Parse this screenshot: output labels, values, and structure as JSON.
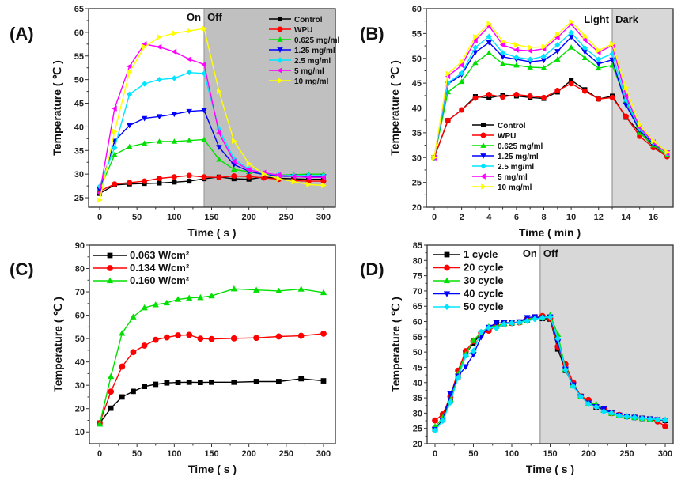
{
  "colors": {
    "Control": "#000000",
    "WPU": "#ff0000",
    "green": "#00e000",
    "blue": "#0000ff",
    "cyan": "#00e5ff",
    "magenta": "#ff00ff",
    "yellow": "#ffff00",
    "shade_A": "#c0c0c0",
    "shade_BD": "#d8d8d8"
  },
  "chart_data": [
    {
      "panel": "(A)",
      "type": "line",
      "xlabel": "Time ( s )",
      "ylabel": "Temperature ( ℃ )",
      "xlim": [
        -8,
        310
      ],
      "ylim": [
        23,
        65
      ],
      "xticks": [
        0,
        50,
        100,
        150,
        200,
        250,
        300
      ],
      "yticks": [
        25,
        30,
        35,
        40,
        45,
        50,
        55,
        60,
        65
      ],
      "shade_from": 140,
      "annotations": [
        "On",
        "Off"
      ],
      "legend_position": "top-right",
      "x": [
        0,
        20,
        40,
        60,
        80,
        100,
        120,
        140,
        160,
        180,
        200,
        220,
        240,
        260,
        280,
        300
      ],
      "series": [
        {
          "name": "Control",
          "marker": "square",
          "color": "#000000",
          "values": [
            25.9,
            27.7,
            27.9,
            28.0,
            28.1,
            28.3,
            28.5,
            29.0,
            29.4,
            29.0,
            28.9,
            29.4,
            29.1,
            29.0,
            28.9,
            28.9
          ]
        },
        {
          "name": "WPU",
          "marker": "circle",
          "color": "#ff0000",
          "values": [
            26.4,
            27.9,
            28.2,
            28.5,
            29.1,
            29.4,
            29.7,
            29.4,
            29.3,
            29.6,
            29.5,
            29.2,
            28.9,
            28.6,
            28.5,
            28.5
          ]
        },
        {
          "name": "0.625 mg/ml",
          "marker": "triangle-up",
          "color": "#00e000",
          "values": [
            26.8,
            34.1,
            35.8,
            36.5,
            36.9,
            36.9,
            37.1,
            37.3,
            33.1,
            31.0,
            30.5,
            30.0,
            29.8,
            29.9,
            30.0,
            30.0
          ]
        },
        {
          "name": "1.25  mg/ml",
          "marker": "triangle-down",
          "color": "#0000ff",
          "values": [
            26.7,
            37.0,
            40.3,
            41.8,
            42.2,
            42.7,
            43.3,
            43.5,
            35.7,
            32.0,
            30.6,
            29.9,
            29.6,
            29.5,
            29.5,
            29.5
          ]
        },
        {
          "name": "2.5  mg/ml",
          "marker": "diamond",
          "color": "#00e5ff",
          "values": [
            27.4,
            35.6,
            46.9,
            49.1,
            50.0,
            50.3,
            51.5,
            51.3,
            39.5,
            33.2,
            31.0,
            30.2,
            29.8,
            29.7,
            29.7,
            29.7
          ]
        },
        {
          "name": "5  mg/ml",
          "marker": "triangle-left",
          "color": "#ff00ff",
          "values": [
            26.0,
            43.9,
            52.8,
            57.5,
            56.9,
            55.9,
            54.3,
            53.2,
            38.7,
            32.7,
            30.9,
            30.3,
            29.8,
            29.5,
            29.3,
            29.3
          ]
        },
        {
          "name": "10  mg/ml",
          "marker": "triangle-right",
          "color": "#ffff00",
          "values": [
            24.5,
            39.0,
            51.6,
            56.9,
            59.0,
            59.8,
            60.3,
            60.8,
            47.5,
            37.0,
            32.2,
            30.0,
            29.0,
            28.4,
            27.8,
            27.6
          ]
        }
      ]
    },
    {
      "panel": "(B)",
      "type": "line",
      "xlabel": "Time ( min )",
      "ylabel": "Temperature ( ℃ )",
      "xlim": [
        -0.5,
        17.5
      ],
      "ylim": [
        20,
        60
      ],
      "xticks": [
        0,
        2,
        4,
        6,
        8,
        10,
        12,
        14,
        16
      ],
      "yticks": [
        20,
        25,
        30,
        35,
        40,
        45,
        50,
        55,
        60
      ],
      "shade_from": 13,
      "annotations": [
        "Light",
        "Dark"
      ],
      "legend_position": "center-left",
      "x": [
        0,
        1,
        2,
        3,
        4,
        5,
        6,
        7,
        8,
        9,
        10,
        11,
        12,
        13,
        14,
        15,
        16,
        17
      ],
      "series": [
        {
          "name": "Control",
          "marker": "square",
          "color": "#000000",
          "values": [
            30.0,
            37.5,
            39.6,
            42.3,
            42.0,
            42.6,
            42.4,
            42.1,
            41.9,
            43.2,
            45.6,
            43.7,
            41.8,
            42.4,
            38.1,
            35.1,
            32.3,
            30.5
          ]
        },
        {
          "name": "WPU",
          "marker": "circle",
          "color": "#ff0000",
          "values": [
            30.0,
            37.5,
            39.6,
            42.0,
            42.7,
            42.2,
            42.7,
            42.4,
            42.1,
            43.5,
            44.9,
            43.4,
            41.8,
            42.1,
            38.3,
            34.3,
            32.0,
            30.2
          ]
        },
        {
          "name": "0.625 mg/ml",
          "marker": "triangle-up",
          "color": "#00e000",
          "values": [
            30.0,
            43.2,
            45.3,
            49.1,
            51.1,
            48.9,
            48.6,
            48.2,
            48.1,
            49.8,
            52.2,
            50.1,
            48.0,
            48.6,
            41.5,
            35.0,
            32.5,
            30.5
          ]
        },
        {
          "name": "1.25 mg/ml",
          "marker": "triangle-down",
          "color": "#0000ff",
          "values": [
            30.0,
            44.8,
            46.7,
            51.2,
            53.2,
            50.3,
            49.8,
            49.3,
            49.6,
            51.4,
            54.3,
            51.3,
            48.9,
            49.7,
            40.6,
            35.5,
            32.7,
            31.0
          ]
        },
        {
          "name": "2.5 mg/ml",
          "marker": "diamond",
          "color": "#00e5ff",
          "values": [
            30.0,
            45.1,
            47.0,
            52.2,
            54.4,
            51.1,
            50.2,
            49.8,
            50.4,
            52.7,
            55.2,
            52.1,
            49.8,
            50.9,
            41.6,
            35.8,
            33.0,
            30.8
          ]
        },
        {
          "name": "5 mg/ml",
          "marker": "triangle-left",
          "color": "#ff00ff",
          "values": [
            30.0,
            46.4,
            48.6,
            53.6,
            56.5,
            52.7,
            51.7,
            51.5,
            51.9,
            54.2,
            56.9,
            53.7,
            51.2,
            52.6,
            42.4,
            36.1,
            33.1,
            30.9
          ]
        },
        {
          "name": "10 mg/ml",
          "marker": "triangle-right",
          "color": "#ffff00",
          "values": [
            30.0,
            46.9,
            49.3,
            54.3,
            57.0,
            53.4,
            52.7,
            52.2,
            52.3,
            54.8,
            57.4,
            54.5,
            51.6,
            52.9,
            44.1,
            36.6,
            33.3,
            31.1
          ]
        }
      ]
    },
    {
      "panel": "(C)",
      "type": "line",
      "xlabel": "Time ( s )",
      "ylabel": "Temperature ( ℃ )",
      "xlim": [
        -8,
        310
      ],
      "ylim": [
        5,
        90
      ],
      "xticks": [
        0,
        50,
        100,
        150,
        200,
        250,
        300
      ],
      "yticks": [
        10,
        20,
        30,
        40,
        50,
        60,
        70,
        80,
        90
      ],
      "legend_position": "top-left",
      "x": [
        0,
        15,
        30,
        45,
        60,
        75,
        90,
        105,
        120,
        135,
        150,
        180,
        210,
        240,
        270,
        300
      ],
      "series": [
        {
          "name": "0.063 W/cm²",
          "marker": "square",
          "color": "#000000",
          "values": [
            13.8,
            20.2,
            25.0,
            27.4,
            29.5,
            30.4,
            31.0,
            31.2,
            31.3,
            31.2,
            31.3,
            31.3,
            31.6,
            31.6,
            32.8,
            31.9
          ]
        },
        {
          "name": "0.134 W/cm²",
          "marker": "circle",
          "color": "#ff0000",
          "values": [
            13.8,
            27.3,
            38.0,
            44.2,
            47.0,
            49.5,
            50.5,
            51.4,
            51.6,
            50.0,
            49.8,
            50.1,
            50.3,
            50.9,
            51.2,
            52.1
          ]
        },
        {
          "name": "0.160 W/cm²",
          "marker": "triangle-up",
          "color": "#00e000",
          "values": [
            13.4,
            33.8,
            52.3,
            59.3,
            63.2,
            64.5,
            65.3,
            66.8,
            67.4,
            67.6,
            68.3,
            71.3,
            70.8,
            70.4,
            71.2,
            69.7
          ]
        }
      ]
    },
    {
      "panel": "(D)",
      "type": "line",
      "xlabel": "Time ( s )",
      "ylabel": "Temperature ( ℃ )",
      "xlim": [
        -8,
        310
      ],
      "ylim": [
        20,
        85
      ],
      "xticks": [
        0,
        50,
        100,
        150,
        200,
        250,
        300
      ],
      "yticks": [
        20,
        25,
        30,
        35,
        40,
        45,
        50,
        55,
        60,
        65,
        70,
        75,
        80,
        85
      ],
      "shade_from": 137,
      "annotations": [
        "On",
        "Off"
      ],
      "legend_position": "top-left",
      "x": [
        0,
        10,
        20,
        30,
        40,
        50,
        60,
        70,
        80,
        90,
        100,
        110,
        120,
        130,
        140,
        150,
        160,
        170,
        180,
        190,
        200,
        210,
        220,
        230,
        240,
        250,
        260,
        270,
        280,
        290,
        300
      ],
      "series": [
        {
          "name": "1 cycle",
          "marker": "square",
          "color": "#000000",
          "values": [
            24.8,
            27.8,
            34.0,
            42.0,
            49.5,
            53.0,
            56.0,
            57.8,
            59.7,
            59.3,
            59.5,
            59.8,
            60.5,
            61.5,
            61.0,
            60.8,
            51.0,
            44.0,
            39.0,
            35.5,
            33.5,
            32.0,
            31.0,
            30.0,
            29.3,
            28.9,
            28.6,
            28.3,
            28.1,
            27.8,
            27.6
          ]
        },
        {
          "name": "20 cycle",
          "marker": "circle",
          "color": "#ff0000",
          "values": [
            27.6,
            29.6,
            35.4,
            43.9,
            50.3,
            53.6,
            56.3,
            57.0,
            58.5,
            59.3,
            59.5,
            59.7,
            60.6,
            61.2,
            61.8,
            61.0,
            51.8,
            46.0,
            40.0,
            35.5,
            34.3,
            32.2,
            31.4,
            30.0,
            29.4,
            28.9,
            28.6,
            28.3,
            28.0,
            27.3,
            25.7
          ]
        },
        {
          "name": "30 cycle",
          "marker": "triangle-up",
          "color": "#00e000",
          "values": [
            25.6,
            28.5,
            34.5,
            42.8,
            49.3,
            53.8,
            56.4,
            58.3,
            58.5,
            59.3,
            59.6,
            59.8,
            60.5,
            61.3,
            61.3,
            62.1,
            55.8,
            44.5,
            39.2,
            35.5,
            33.3,
            33.0,
            31.0,
            30.0,
            29.3,
            28.9,
            28.6,
            28.3,
            28.1,
            27.9,
            27.8
          ]
        },
        {
          "name": "40 cycle",
          "marker": "triangle-down",
          "color": "#0000ff",
          "values": [
            24.6,
            27.6,
            36.3,
            42.1,
            45.2,
            49.2,
            54.9,
            58.1,
            59.5,
            59.6,
            59.6,
            59.9,
            61.3,
            61.5,
            61.2,
            61.5,
            53.3,
            44.4,
            39.2,
            35.4,
            33.3,
            32.1,
            31.4,
            30.0,
            29.3,
            28.9,
            28.6,
            28.3,
            28.1,
            27.9,
            27.7
          ]
        },
        {
          "name": "50 cycle",
          "marker": "diamond",
          "color": "#00e5ff",
          "values": [
            24.3,
            27.5,
            33.5,
            41.6,
            48.8,
            50.4,
            56.6,
            58.0,
            57.8,
            59.2,
            59.5,
            59.7,
            60.2,
            60.8,
            61.2,
            61.5,
            54.4,
            44.2,
            38.8,
            35.4,
            33.0,
            32.0,
            30.5,
            30.0,
            29.2,
            28.9,
            28.6,
            28.3,
            28.1,
            27.9,
            27.8
          ]
        }
      ]
    }
  ]
}
